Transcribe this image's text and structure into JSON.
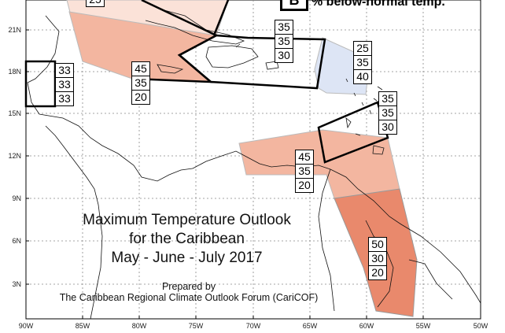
{
  "map": {
    "lat_labels": [
      "21N",
      "18N",
      "15N",
      "12N",
      "9N",
      "6N",
      "3N"
    ],
    "lon_labels": [
      "90W",
      "85W",
      "80W",
      "75W",
      "70W",
      "65W",
      "60W",
      "55W",
      "50W"
    ],
    "colors": {
      "above_light": "#fbe2d8",
      "above_mid": "#f3b6a0",
      "above_strong": "#e9896c",
      "below_light": "#dde5f5",
      "border": "#000000"
    }
  },
  "title": {
    "line1": "Maximum Temperature Outlook",
    "line2": "for the Caribbean",
    "line3": "May - June - July 2017"
  },
  "credit": {
    "line1": "Prepared by",
    "line2": "The Caribbean Regional Climate Outlook Forum (CariCOF)"
  },
  "legend": {
    "box_value": "B",
    "text": "% below-normal temp."
  },
  "top_partial_value": "25",
  "zones": [
    {
      "id": "belize",
      "values": [
        "33",
        "33",
        "33"
      ]
    },
    {
      "id": "cuba-jamaica",
      "values": [
        "45",
        "35",
        "20"
      ]
    },
    {
      "id": "hispaniola",
      "values": [
        "35",
        "35",
        "30"
      ]
    },
    {
      "id": "leeward",
      "values": [
        "25",
        "35",
        "40"
      ]
    },
    {
      "id": "windward",
      "values": [
        "35",
        "35",
        "30"
      ]
    },
    {
      "id": "south-caribbean",
      "values": [
        "45",
        "35",
        "20"
      ]
    },
    {
      "id": "guianas",
      "values": [
        "50",
        "30",
        "20"
      ]
    }
  ]
}
